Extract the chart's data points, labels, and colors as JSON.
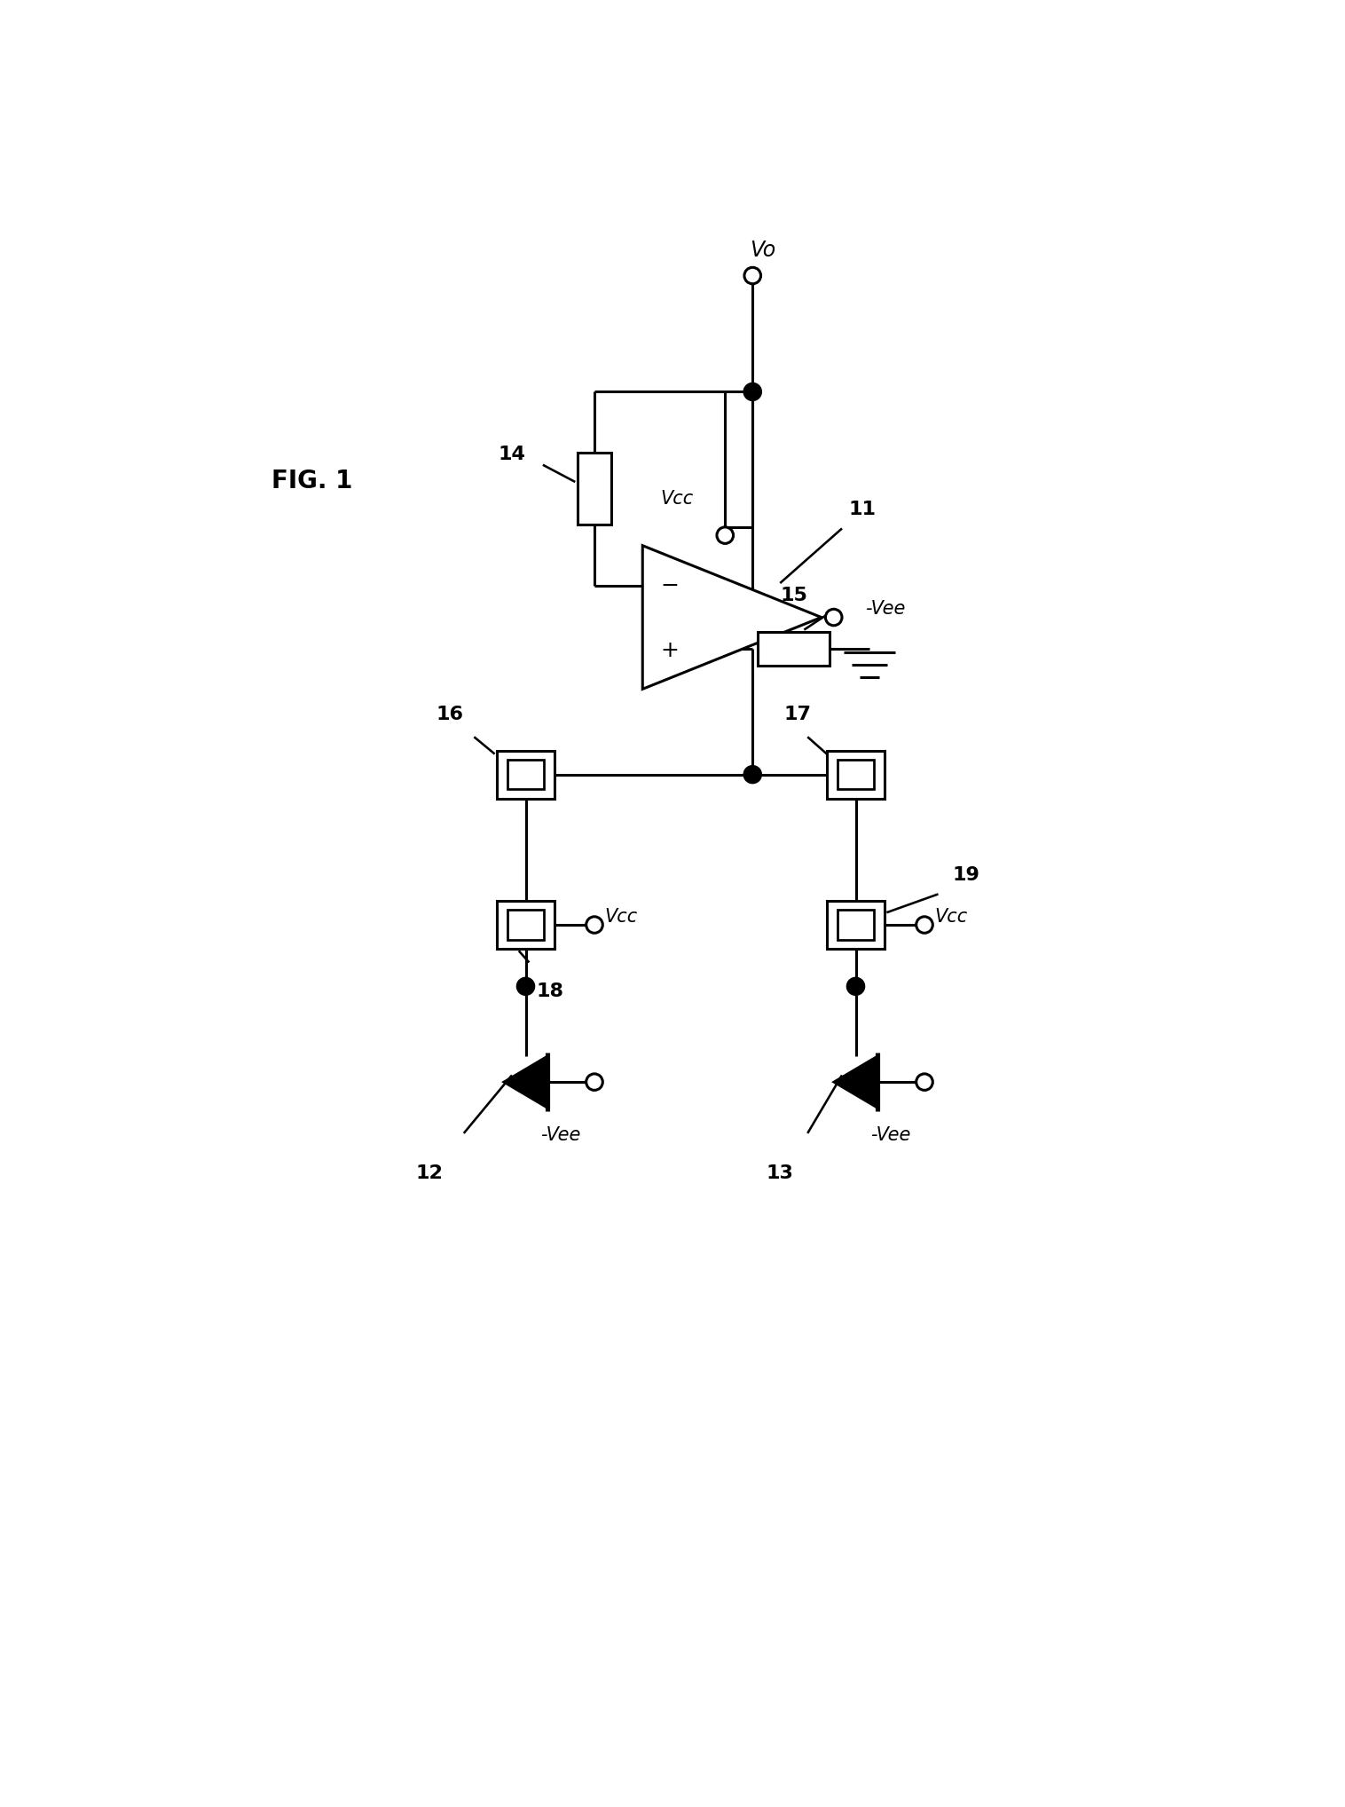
{
  "title": "FIG. 1",
  "background": "#ffffff",
  "line_color": "#000000",
  "line_width": 2.2,
  "fig_width": 15.16,
  "fig_height": 20.36,
  "labels": {
    "fig_label": "FIG. 1",
    "Vo": "Vo",
    "Vcc_amp": "Vcc",
    "Vee_amp": "-Vee",
    "label_11": "11",
    "label_12": "12",
    "label_13": "13",
    "label_14": "14",
    "label_15": "15",
    "label_16": "16",
    "label_17": "17",
    "label_18": "18",
    "label_19": "19",
    "Vcc_18": "Vcc",
    "Vcc_19": "Vcc",
    "Vee_12": "-Vee",
    "Vee_13": "-Vee"
  }
}
